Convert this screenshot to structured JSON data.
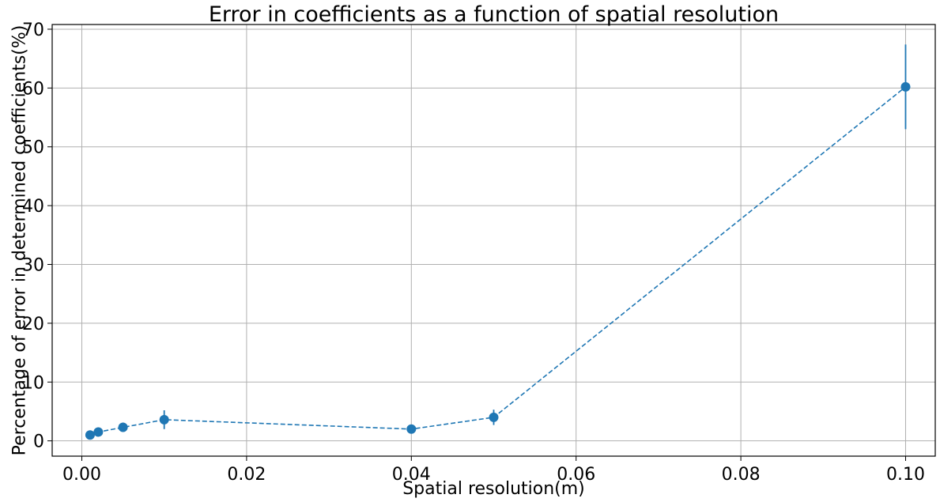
{
  "chart_data": {
    "type": "line",
    "title": "Error in coefficients as a function of spatial resolution",
    "xlabel": "Spatial resolution(m)",
    "ylabel": "Percentage of error in determined coefficients(%)",
    "xlim": [
      -0.0036,
      0.1036
    ],
    "ylim": [
      -2.6,
      70.8
    ],
    "xticks": [
      0.0,
      0.02,
      0.04,
      0.06,
      0.08,
      0.1
    ],
    "xtick_labels": [
      "0.00",
      "0.02",
      "0.04",
      "0.06",
      "0.08",
      "0.10"
    ],
    "yticks": [
      0,
      10,
      20,
      30,
      40,
      50,
      60,
      70
    ],
    "ytick_labels": [
      "0",
      "10",
      "20",
      "30",
      "40",
      "50",
      "60",
      "70"
    ],
    "grid": true,
    "legend": false,
    "series": [
      {
        "color": "#1f77b4",
        "line_style": "dashed",
        "marker": "circle",
        "x": [
          0.001,
          0.002,
          0.005,
          0.01,
          0.04,
          0.05,
          0.1
        ],
        "y": [
          1.0,
          1.5,
          2.3,
          3.6,
          2.0,
          4.0,
          60.2
        ],
        "yerr": [
          0.4,
          0.5,
          0.7,
          1.6,
          0.5,
          1.3,
          7.2
        ]
      }
    ]
  }
}
